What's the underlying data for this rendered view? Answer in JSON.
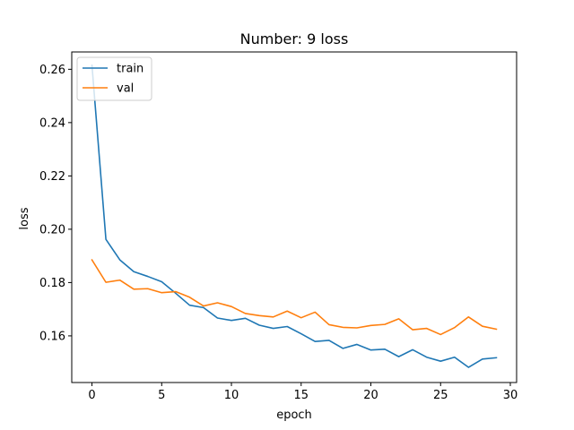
{
  "chart_data": {
    "type": "line",
    "title": "Number: 9 loss",
    "xlabel": "epoch",
    "ylabel": "loss",
    "xlim": [
      -1.45,
      30.45
    ],
    "ylim": [
      0.1425,
      0.2665
    ],
    "xticks": [
      0,
      5,
      10,
      15,
      20,
      25,
      30
    ],
    "yticks": [
      0.16,
      0.18,
      0.2,
      0.22,
      0.24,
      0.26
    ],
    "grid": false,
    "legend_position": "top-left",
    "x": [
      0,
      1,
      2,
      3,
      4,
      5,
      6,
      7,
      8,
      9,
      10,
      11,
      12,
      13,
      14,
      15,
      16,
      17,
      18,
      19,
      20,
      21,
      22,
      23,
      24,
      25,
      26,
      27,
      28,
      29
    ],
    "series": [
      {
        "name": "train",
        "color": "#1f77b4",
        "values": [
          0.2615,
          0.1962,
          0.1885,
          0.1841,
          0.1823,
          0.1803,
          0.176,
          0.1715,
          0.1706,
          0.1667,
          0.1658,
          0.1666,
          0.164,
          0.1628,
          0.1635,
          0.1608,
          0.1579,
          0.1583,
          0.1553,
          0.1568,
          0.1547,
          0.155,
          0.1522,
          0.1548,
          0.152,
          0.1505,
          0.152,
          0.1482,
          0.1513,
          0.1518
        ]
      },
      {
        "name": "val",
        "color": "#ff7f0e",
        "values": [
          0.1885,
          0.1801,
          0.1809,
          0.1775,
          0.1777,
          0.1762,
          0.1766,
          0.1745,
          0.1712,
          0.1724,
          0.171,
          0.1684,
          0.1676,
          0.1671,
          0.1693,
          0.1668,
          0.1689,
          0.1642,
          0.1632,
          0.163,
          0.1639,
          0.1643,
          0.1664,
          0.1623,
          0.1628,
          0.1605,
          0.1631,
          0.1671,
          0.1636,
          0.1625
        ]
      }
    ]
  }
}
